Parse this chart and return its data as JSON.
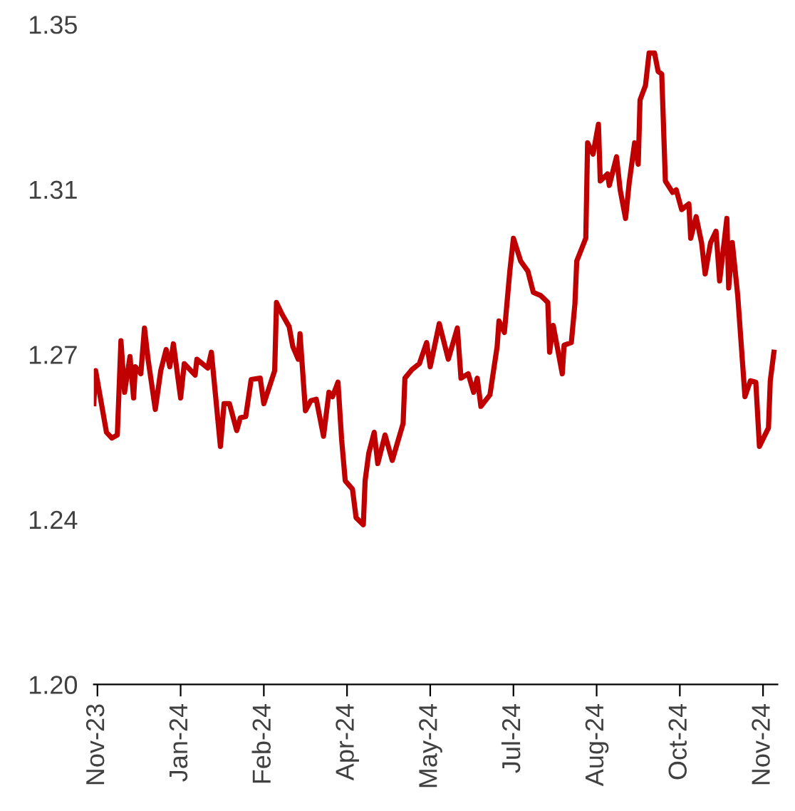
{
  "chart_data": {
    "type": "line",
    "x": [
      "2023-11-18",
      "2023-11-19",
      "2023-11-25",
      "2023-11-28",
      "2023-12-01",
      "2023-12-03",
      "2023-12-05",
      "2023-12-08",
      "2023-12-10",
      "2023-12-11",
      "2023-12-14",
      "2023-12-16",
      "2023-12-18",
      "2023-12-22",
      "2023-12-25",
      "2023-12-28",
      "2023-12-30",
      "2024-01-01",
      "2024-01-05",
      "2024-01-07",
      "2024-01-13",
      "2024-01-14",
      "2024-01-20",
      "2024-01-22",
      "2024-01-27",
      "2024-01-29",
      "2024-02-01",
      "2024-02-05",
      "2024-02-07",
      "2024-02-10",
      "2024-02-13",
      "2024-02-18",
      "2024-02-20",
      "2024-02-26",
      "2024-02-27",
      "2024-03-01",
      "2024-03-05",
      "2024-03-07",
      "2024-03-10",
      "2024-03-11",
      "2024-03-14",
      "2024-03-17",
      "2024-03-20",
      "2024-03-24",
      "2024-03-27",
      "2024-03-29",
      "2024-04-01",
      "2024-04-03",
      "2024-04-05",
      "2024-04-09",
      "2024-04-11",
      "2024-04-15",
      "2024-04-16",
      "2024-04-18",
      "2024-04-21",
      "2024-04-23",
      "2024-04-27",
      "2024-05-01",
      "2024-05-07",
      "2024-05-08",
      "2024-05-12",
      "2024-05-16",
      "2024-05-20",
      "2024-05-22",
      "2024-05-27",
      "2024-06-01",
      "2024-06-06",
      "2024-06-08",
      "2024-06-12",
      "2024-06-15",
      "2024-06-17",
      "2024-06-19",
      "2024-06-24",
      "2024-06-28",
      "2024-06-29",
      "2024-07-02",
      "2024-07-05",
      "2024-07-07",
      "2024-07-11",
      "2024-07-15",
      "2024-07-18",
      "2024-07-22",
      "2024-07-26",
      "2024-07-27",
      "2024-07-29",
      "2024-08-03",
      "2024-08-04",
      "2024-08-08",
      "2024-08-10",
      "2024-08-11",
      "2024-08-16",
      "2024-08-17",
      "2024-08-20",
      "2024-08-23",
      "2024-08-24",
      "2024-08-28",
      "2024-08-29",
      "2024-09-02",
      "2024-09-04",
      "2024-09-07",
      "2024-09-09",
      "2024-09-12",
      "2024-09-14",
      "2024-09-15",
      "2024-09-18",
      "2024-09-20",
      "2024-09-23",
      "2024-09-25",
      "2024-09-27",
      "2024-09-29",
      "2024-10-03",
      "2024-10-05",
      "2024-10-08",
      "2024-10-12",
      "2024-10-13",
      "2024-10-16",
      "2024-10-19",
      "2024-10-21",
      "2024-10-24",
      "2024-10-27",
      "2024-10-29",
      "2024-11-02",
      "2024-11-03",
      "2024-11-05",
      "2024-11-08",
      "2024-11-12",
      "2024-11-15",
      "2024-11-18",
      "2024-11-20",
      "2024-11-25",
      "2024-11-26",
      "2024-11-28"
    ],
    "series": [
      {
        "color": "#c00000",
        "values": [
          1.2638,
          1.2713,
          1.2573,
          1.256,
          1.2567,
          1.2781,
          1.2664,
          1.2745,
          1.2651,
          1.2722,
          1.2706,
          1.281,
          1.2739,
          1.2625,
          1.2713,
          1.2761,
          1.2722,
          1.2774,
          1.2651,
          1.2729,
          1.2703,
          1.2739,
          1.2719,
          1.2755,
          1.2541,
          1.2638,
          1.2638,
          1.2577,
          1.2606,
          1.2609,
          1.2693,
          1.2696,
          1.2638,
          1.2713,
          1.2868,
          1.2842,
          1.2813,
          1.2768,
          1.2739,
          1.2797,
          1.2622,
          1.2645,
          1.2648,
          1.2564,
          1.2664,
          1.2654,
          1.2687,
          1.2557,
          1.2463,
          1.2444,
          1.2379,
          1.2363,
          1.2463,
          1.2525,
          1.2573,
          1.2502,
          1.2567,
          1.2509,
          1.2593,
          1.2696,
          1.2716,
          1.2729,
          1.2777,
          1.2722,
          1.282,
          1.2739,
          1.281,
          1.2696,
          1.2706,
          1.2664,
          1.2696,
          1.2632,
          1.2658,
          1.2768,
          1.2826,
          1.28,
          1.2939,
          1.3014,
          1.2962,
          1.2939,
          1.2891,
          1.2884,
          1.2868,
          1.2755,
          1.2816,
          1.2706,
          1.2771,
          1.2777,
          1.2865,
          1.2962,
          1.3014,
          1.3231,
          1.3205,
          1.3273,
          1.3144,
          1.316,
          1.3134,
          1.3199,
          1.3124,
          1.3059,
          1.314,
          1.3231,
          1.3182,
          1.3328,
          1.3361,
          1.3435,
          1.3435,
          1.3393,
          1.3387,
          1.3144,
          1.3118,
          1.3124,
          1.3079,
          1.3092,
          1.3014,
          1.3063,
          1.3004,
          1.2933,
          1.3004,
          1.303,
          1.2917,
          1.3059,
          1.2901,
          1.3004,
          1.2884,
          1.2654,
          1.269,
          1.2687,
          1.2541,
          1.2583,
          1.269,
          1.2755
        ]
      }
    ],
    "xlim": [
      "2023-11-18",
      "2024-11-30"
    ],
    "xticks": [
      {
        "value": "2023-11-20",
        "label": "Nov-23"
      },
      {
        "value": "2024-01-05",
        "label": "Jan-24"
      },
      {
        "value": "2024-02-20",
        "label": "Feb-24"
      },
      {
        "value": "2024-04-06",
        "label": "Apr-24"
      },
      {
        "value": "2024-05-22",
        "label": "May-24"
      },
      {
        "value": "2024-07-07",
        "label": "Jul-24"
      },
      {
        "value": "2024-08-22",
        "label": "Aug-24"
      },
      {
        "value": "2024-10-07",
        "label": "Oct-24"
      },
      {
        "value": "2024-11-22",
        "label": "Nov-24"
      }
    ],
    "ylim": [
      1.2,
      1.35
    ],
    "yticks": [
      {
        "value": 1.2,
        "label": "1.20"
      },
      {
        "value": 1.2375,
        "label": "1.24"
      },
      {
        "value": 1.275,
        "label": "1.27"
      },
      {
        "value": 1.3125,
        "label": "1.31"
      },
      {
        "value": 1.35,
        "label": "1.35"
      }
    ],
    "grid": false,
    "legend": false,
    "marker": "none",
    "line_style": "solid"
  }
}
